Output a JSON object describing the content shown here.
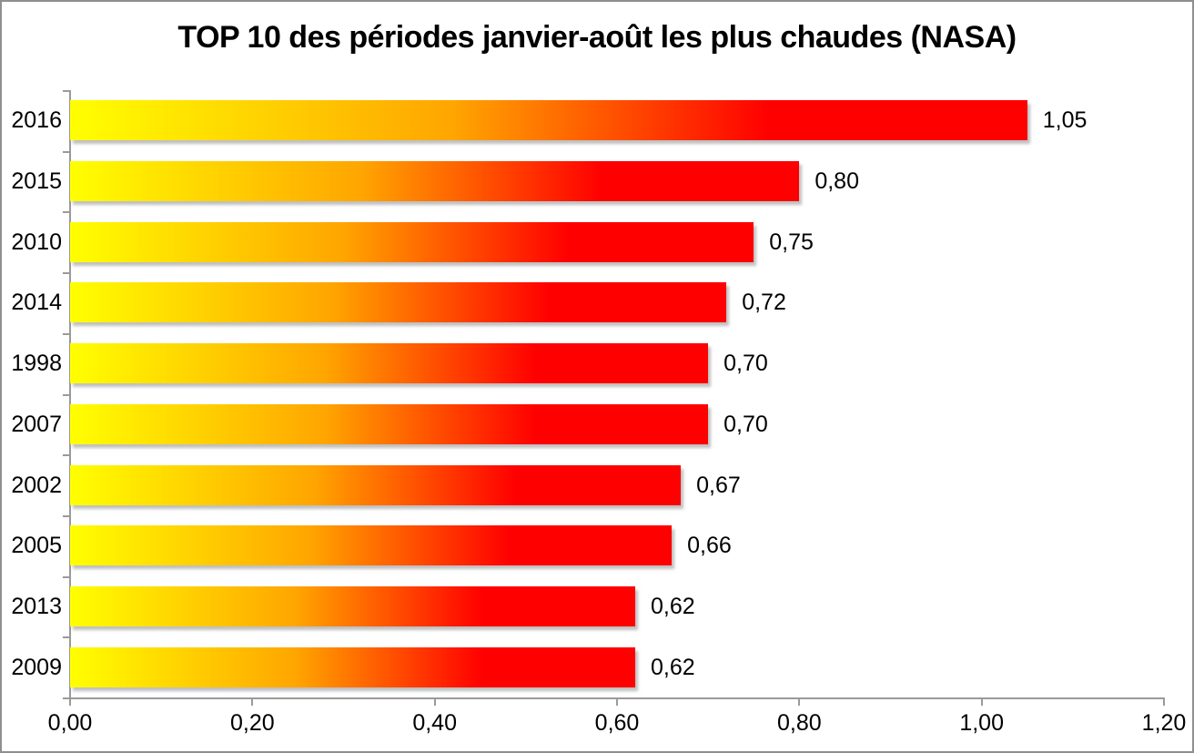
{
  "window": {
    "background_color": "#ffffff",
    "border_color": "#8f8f8f"
  },
  "chart_data": {
    "type": "bar",
    "orientation": "horizontal",
    "title": "TOP 10 des périodes janvier-août les plus chaudes (NASA)",
    "categories": [
      "2016",
      "2015",
      "2010",
      "2014",
      "1998",
      "2007",
      "2002",
      "2005",
      "2013",
      "2009"
    ],
    "values": [
      1.05,
      0.8,
      0.75,
      0.72,
      0.7,
      0.7,
      0.67,
      0.66,
      0.62,
      0.62
    ],
    "value_labels": [
      "1,05",
      "0,80",
      "0,75",
      "0,72",
      "0,70",
      "0,70",
      "0,67",
      "0,66",
      "0,62",
      "0,62"
    ],
    "xlabel": "",
    "ylabel": "",
    "xlim": [
      0,
      1.2
    ],
    "x_tick_values": [
      0,
      0.2,
      0.4,
      0.6,
      0.8,
      1.0,
      1.2
    ],
    "x_tick_labels": [
      "0,00",
      "0,20",
      "0,40",
      "0,60",
      "0,80",
      "1,00",
      "1,20"
    ],
    "grid": false,
    "legend": "none",
    "decimal_separator": ",",
    "bar_gradient": {
      "start_color": "#ffff00",
      "mid_color": "#ffa500",
      "end_color": "#ff0000",
      "mid_stop_fraction": 0.4,
      "red_stop_fraction": 0.73
    },
    "axis_color": "#9a9a9a",
    "text_color": "#000000",
    "bar_shadow_color": "#b8b8b8"
  }
}
